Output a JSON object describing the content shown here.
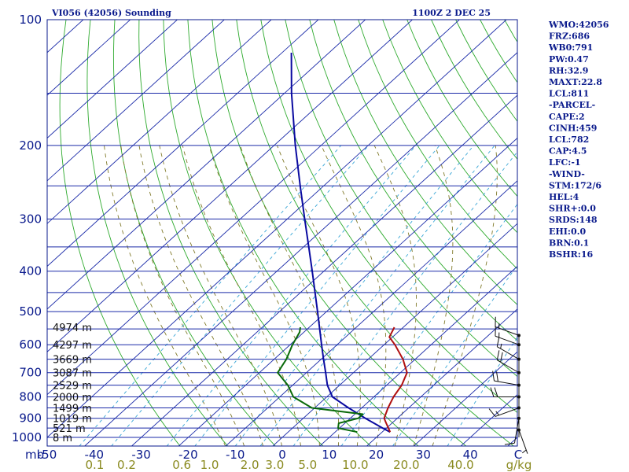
{
  "header": {
    "title": "VI056 (42056) Sounding",
    "time": "1100Z  2 DEC 25"
  },
  "sidebar": [
    "WMO:42056",
    "FRZ:686",
    "WB0:791",
    "PW:0.47",
    "RH:32.9",
    "MAXT:22.8",
    "LCL:811",
    "-PARCEL-",
    "CAPE:2",
    "CINH:459",
    "LCL:782",
    "CAP:4.5",
    "LFC:-1",
    "-WIND-",
    "STM:172/6",
    "HEL:4",
    "SHR+:0.0",
    "SRDS:148",
    "EHI:0.0",
    "BRN:0.1",
    "BSHR:16"
  ],
  "chart_data": {
    "type": "skew-t log-p sounding",
    "pressure_axis": {
      "unit_label": "mb",
      "range": [
        1000,
        100
      ],
      "scale": "log",
      "tick_labels": [
        "100",
        "200",
        "300",
        "400",
        "500",
        "600",
        "700",
        "800",
        "900",
        "1000"
      ],
      "isobars": [
        100,
        150,
        200,
        250,
        300,
        350,
        400,
        450,
        500,
        550,
        600,
        650,
        700,
        750,
        800,
        850,
        900,
        950,
        1000
      ]
    },
    "temperature_axis": {
      "unit_label": "C",
      "range": [
        -50,
        50
      ],
      "tick_labels": [
        "-50",
        "-40",
        "-30",
        "-20",
        "-10",
        "0",
        "10",
        "20",
        "30",
        "40"
      ],
      "tick_values": [
        -50,
        -40,
        -30,
        -20,
        -10,
        0,
        10,
        20,
        30,
        40
      ]
    },
    "mixing_ratio_axis": {
      "unit_label": "g/kg",
      "values": [
        0.1,
        0.2,
        0.6,
        1.0,
        2.0,
        3.0,
        5.0,
        10.0,
        20.0,
        40.0
      ],
      "tick_labels": [
        "0.1",
        "0.2",
        "0.6",
        "1.0",
        "2.0",
        "3.0",
        "5.0",
        "10.0",
        "20.0",
        "40.0"
      ]
    },
    "height_labels": [
      {
        "p": 545,
        "text": "4974 m"
      },
      {
        "p": 600,
        "text": "4297 m"
      },
      {
        "p": 650,
        "text": "3669 m"
      },
      {
        "p": 700,
        "text": "3087 m"
      },
      {
        "p": 750,
        "text": "2529 m"
      },
      {
        "p": 800,
        "text": "2000 m"
      },
      {
        "p": 850,
        "text": "1499 m"
      },
      {
        "p": 900,
        "text": "1019 m"
      },
      {
        "p": 950,
        "text": "521 m"
      },
      {
        "p": 1000,
        "text": "8 m"
      }
    ],
    "series": [
      {
        "key": "parcel",
        "color": "#0a0aa0",
        "points": [
          [
            971,
            21.7
          ],
          [
            950,
            19.2
          ],
          [
            900,
            13.2
          ],
          [
            850,
            7.2
          ],
          [
            800,
            1.2
          ],
          [
            750,
            -2.6
          ],
          [
            700,
            -5.9
          ],
          [
            650,
            -9.5
          ],
          [
            600,
            -13.3
          ],
          [
            550,
            -17.4
          ],
          [
            500,
            -21.9
          ],
          [
            450,
            -26.9
          ],
          [
            400,
            -32.5
          ],
          [
            350,
            -38.9
          ],
          [
            300,
            -46.3
          ],
          [
            250,
            -55.0
          ],
          [
            200,
            -65.5
          ],
          [
            150,
            -78.5
          ],
          [
            120,
            -88.0
          ]
        ]
      },
      {
        "key": "temperature",
        "color": "#b01010",
        "points": [
          [
            971,
            21.7
          ],
          [
            950,
            20.4
          ],
          [
            925,
            18.8
          ],
          [
            900,
            17.2
          ],
          [
            850,
            15.6
          ],
          [
            800,
            14.2
          ],
          [
            750,
            13.2
          ],
          [
            700,
            11.4
          ],
          [
            650,
            7.4
          ],
          [
            600,
            2.3
          ],
          [
            575,
            -0.7
          ],
          [
            545,
            -1.9
          ]
        ]
      },
      {
        "key": "dewpoint",
        "color": "#0a6a0a",
        "points": [
          [
            971,
            14.7
          ],
          [
            950,
            9.7
          ],
          [
            925,
            8.7
          ],
          [
            900,
            11.7
          ],
          [
            880,
            11.7
          ],
          [
            850,
            -0.6
          ],
          [
            800,
            -7.1
          ],
          [
            750,
            -11.0
          ],
          [
            700,
            -16.1
          ],
          [
            650,
            -17.4
          ],
          [
            600,
            -19.5
          ],
          [
            560,
            -20.9
          ],
          [
            545,
            -21.9
          ]
        ]
      }
    ],
    "wind_barbs": [
      {
        "p": 960,
        "dir": 160,
        "spd": 5
      },
      {
        "p": 900,
        "dir": 190,
        "spd": 10
      },
      {
        "p": 850,
        "dir": 250,
        "spd": 15
      },
      {
        "p": 800,
        "dir": 270,
        "spd": 20
      },
      {
        "p": 750,
        "dir": 280,
        "spd": 20
      },
      {
        "p": 700,
        "dir": 300,
        "spd": 20
      },
      {
        "p": 650,
        "dir": 300,
        "spd": 15
      },
      {
        "p": 600,
        "dir": 290,
        "spd": 15
      },
      {
        "p": 570,
        "dir": 290,
        "spd": 15
      }
    ]
  }
}
